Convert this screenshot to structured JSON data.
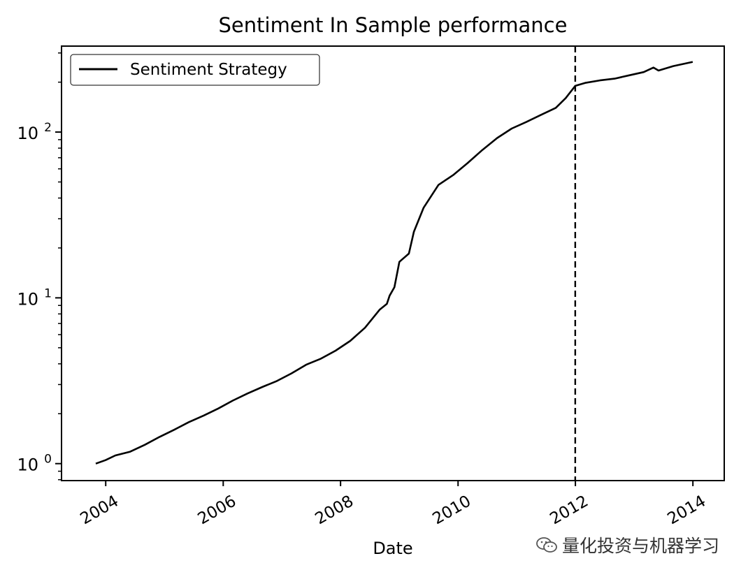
{
  "chart_data": {
    "type": "line",
    "title": "Sentiment In Sample performance",
    "xlabel": "Date",
    "ylabel": "",
    "yscale": "log",
    "xlim": [
      "2003-04-01",
      "2014-07-15"
    ],
    "ylim": [
      0.79,
      330
    ],
    "x_ticks": [
      "2004",
      "2006",
      "2008",
      "2010",
      "2012",
      "2014"
    ],
    "y_ticks": [
      {
        "value": 1,
        "base": "10",
        "exp": "0"
      },
      {
        "value": 10,
        "base": "10",
        "exp": "1"
      },
      {
        "value": 100,
        "base": "10",
        "exp": "2"
      }
    ],
    "grid": false,
    "legend": {
      "position": "top-left",
      "entries": [
        "Sentiment Strategy"
      ]
    },
    "vline": {
      "x": "2011-12-31",
      "style": "dashed"
    },
    "series": [
      {
        "name": "Sentiment Strategy",
        "color": "#000000",
        "x": [
          "2003-10-31",
          "2003-12-31",
          "2004-03-01",
          "2004-06-01",
          "2004-09-01",
          "2004-12-01",
          "2005-03-01",
          "2005-06-01",
          "2005-09-01",
          "2005-12-01",
          "2006-03-01",
          "2006-06-01",
          "2006-09-01",
          "2006-12-01",
          "2007-03-01",
          "2007-06-01",
          "2007-09-01",
          "2007-12-01",
          "2008-03-01",
          "2008-06-01",
          "2008-09-01",
          "2008-10-15",
          "2008-11-01",
          "2008-12-01",
          "2009-01-01",
          "2009-03-01",
          "2009-04-01",
          "2009-06-01",
          "2009-09-01",
          "2009-12-01",
          "2010-03-01",
          "2010-06-01",
          "2010-09-01",
          "2010-12-01",
          "2011-03-01",
          "2011-06-01",
          "2011-09-01",
          "2011-11-01",
          "2011-12-31",
          "2012-03-01",
          "2012-06-01",
          "2012-09-01",
          "2012-12-01",
          "2013-03-01",
          "2013-05-01",
          "2013-06-01",
          "2013-09-01",
          "2013-12-31"
        ],
        "y": [
          1.0,
          1.05,
          1.12,
          1.18,
          1.3,
          1.45,
          1.6,
          1.78,
          1.95,
          2.15,
          2.4,
          2.65,
          2.9,
          3.15,
          3.5,
          3.95,
          4.3,
          4.8,
          5.5,
          6.6,
          8.5,
          9.2,
          10.3,
          11.6,
          16.5,
          18.5,
          25,
          35,
          48,
          55,
          65,
          78,
          92,
          105,
          115,
          127,
          140,
          160,
          190,
          198,
          205,
          210,
          220,
          230,
          245,
          235,
          250,
          265
        ]
      }
    ]
  },
  "watermark": {
    "text": "量化投资与机器学习"
  }
}
